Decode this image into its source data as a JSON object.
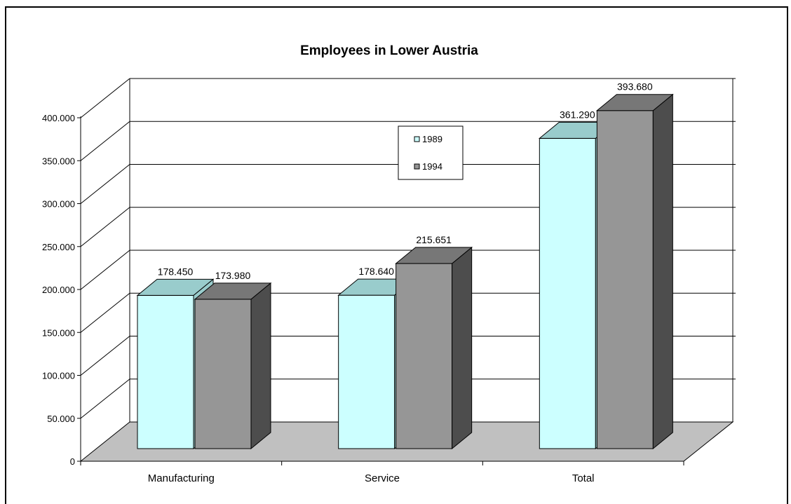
{
  "chart_data": {
    "type": "bar",
    "title": "Employees in Lower Austria",
    "categories": [
      "Manufacturing",
      "Service",
      "Total"
    ],
    "series": [
      {
        "name": "1989",
        "values": [
          178450,
          178640,
          361290
        ],
        "labels": [
          "178.450",
          "178.640",
          "361.290"
        ],
        "color": "#ccffff"
      },
      {
        "name": "1994",
        "values": [
          173980,
          215651,
          393680
        ],
        "labels": [
          "173.980",
          "215.651",
          "393.680"
        ],
        "color": "#969696"
      }
    ],
    "ylim": [
      0,
      400000
    ],
    "yticks": [
      0,
      50000,
      100000,
      150000,
      200000,
      250000,
      300000,
      350000,
      400000
    ],
    "ytick_labels": [
      "0",
      "50.000",
      "100.000",
      "150.000",
      "200.000",
      "250.000",
      "300.000",
      "350.000",
      "400.000"
    ],
    "grid": true,
    "legend": "center-top",
    "floor_color": "#c0c0c0",
    "side_color_1989": "#99cccc",
    "side_color_1994": "#4d4d4d",
    "top_color_1994": "#777777"
  }
}
